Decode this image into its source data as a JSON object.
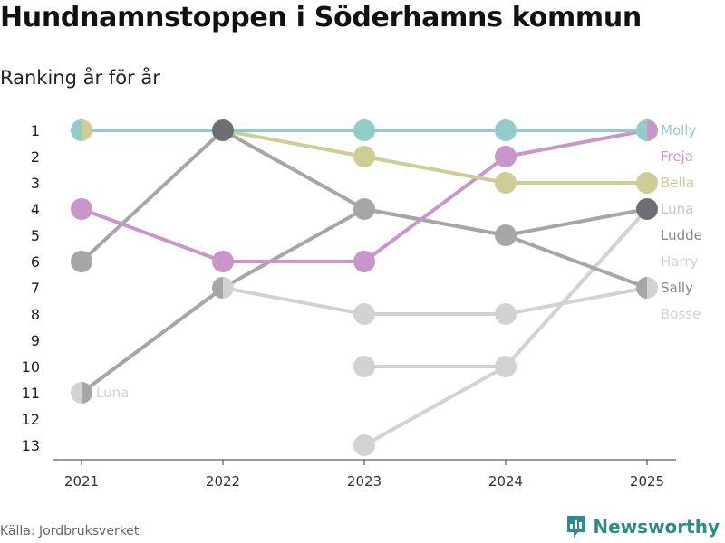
{
  "header": {
    "title": "Hundnamnstoppen i Söderhamns kommun",
    "subtitle": "Ranking år för år"
  },
  "footer": {
    "source": "Källa: Jordbruksverket",
    "brand": "Newsworthy",
    "brand_icon": "bar-chart-icon",
    "brand_color": "#2f8a8a"
  },
  "chart_data": {
    "type": "line",
    "title": "Hundnamnstoppen i Söderhamns kommun",
    "subtitle": "Ranking år för år",
    "xlabel": "",
    "ylabel": "",
    "x": [
      "2021",
      "2022",
      "2023",
      "2024",
      "2025"
    ],
    "y_ticks": [
      1,
      2,
      3,
      4,
      5,
      6,
      7,
      8,
      9,
      10,
      11,
      12,
      13
    ],
    "ylim": [
      1,
      13
    ],
    "y_reversed": true,
    "series": [
      {
        "name": "Luna (2021)",
        "label": "Luna",
        "label_at": 0,
        "color": "#d2d2d2",
        "ranks": [
          11,
          7,
          null,
          null,
          null
        ]
      },
      {
        "name": "Bosse",
        "label": "Bosse",
        "color": "#d2d2d2",
        "ranks": [
          null,
          7,
          8,
          8,
          7
        ]
      },
      {
        "name": "Harry",
        "label": "Harry",
        "color": "#d2d2d2",
        "ranks": [
          null,
          null,
          10,
          10,
          4
        ]
      },
      {
        "name": "Ludde",
        "label": "Ludde",
        "color": "#d2d2d2",
        "ranks": [
          null,
          null,
          13,
          10,
          4
        ]
      },
      {
        "name": "Sally",
        "label": "Sally",
        "color": "#a6a6a6",
        "ranks": [
          6,
          1,
          4,
          5,
          7
        ]
      },
      {
        "name": "Luna",
        "label": "Luna",
        "color": "#a6a6a6",
        "ranks": [
          11,
          7,
          4,
          5,
          4
        ]
      },
      {
        "name": "Freja",
        "label": "Freja",
        "color": "#c996cc",
        "ranks": [
          4,
          6,
          6,
          2,
          1
        ]
      },
      {
        "name": "Bella",
        "label": "Bella",
        "color": "#cdcd95",
        "ranks": [
          1,
          1,
          2,
          3,
          3
        ]
      },
      {
        "name": "Molly",
        "label": "Molly",
        "color": "#93cbcb",
        "ranks": [
          1,
          1,
          1,
          1,
          1
        ]
      }
    ],
    "end_labels": [
      {
        "text": "Molly",
        "rank": 1,
        "color": "#93cbcb"
      },
      {
        "text": "Freja",
        "rank": 2,
        "color": "#c996cc"
      },
      {
        "text": "Bella",
        "rank": 3,
        "color": "#cdcd95"
      },
      {
        "text": "Luna",
        "rank": 4,
        "color": "#c6c6c6"
      },
      {
        "text": "Ludde",
        "rank": 5,
        "color": "#888888"
      },
      {
        "text": "Harry",
        "rank": 6,
        "color": "#d2d2d2"
      },
      {
        "text": "Sally",
        "rank": 7,
        "color": "#888888"
      },
      {
        "text": "Bosse",
        "rank": 8,
        "color": "#d2d2d2"
      }
    ],
    "markers": [
      {
        "year": 0,
        "rank": 1,
        "colors": [
          "#93cbcb",
          "#cdcd95"
        ]
      },
      {
        "year": 0,
        "rank": 4,
        "colors": [
          "#c996cc"
        ]
      },
      {
        "year": 0,
        "rank": 6,
        "colors": [
          "#a6a6a6"
        ]
      },
      {
        "year": 0,
        "rank": 11,
        "colors": [
          "#d2d2d2",
          "#a6a6a6"
        ]
      },
      {
        "year": 1,
        "rank": 1,
        "colors": [
          "#6e6e74"
        ]
      },
      {
        "year": 1,
        "rank": 6,
        "colors": [
          "#c996cc"
        ]
      },
      {
        "year": 1,
        "rank": 7,
        "colors": [
          "#a6a6a6",
          "#d2d2d2"
        ]
      },
      {
        "year": 2,
        "rank": 1,
        "colors": [
          "#93cbcb"
        ]
      },
      {
        "year": 2,
        "rank": 2,
        "colors": [
          "#cdcd95"
        ]
      },
      {
        "year": 2,
        "rank": 4,
        "colors": [
          "#a6a6a6"
        ]
      },
      {
        "year": 2,
        "rank": 6,
        "colors": [
          "#c996cc"
        ]
      },
      {
        "year": 2,
        "rank": 8,
        "colors": [
          "#d2d2d2"
        ]
      },
      {
        "year": 2,
        "rank": 10,
        "colors": [
          "#d2d2d2"
        ]
      },
      {
        "year": 2,
        "rank": 13,
        "colors": [
          "#d2d2d2"
        ]
      },
      {
        "year": 3,
        "rank": 1,
        "colors": [
          "#93cbcb"
        ]
      },
      {
        "year": 3,
        "rank": 2,
        "colors": [
          "#c996cc"
        ]
      },
      {
        "year": 3,
        "rank": 3,
        "colors": [
          "#cdcd95"
        ]
      },
      {
        "year": 3,
        "rank": 5,
        "colors": [
          "#a6a6a6"
        ]
      },
      {
        "year": 3,
        "rank": 8,
        "colors": [
          "#d2d2d2"
        ]
      },
      {
        "year": 3,
        "rank": 10,
        "colors": [
          "#d2d2d2"
        ]
      },
      {
        "year": 4,
        "rank": 1,
        "colors": [
          "#93cbcb",
          "#c996cc"
        ]
      },
      {
        "year": 4,
        "rank": 3,
        "colors": [
          "#cdcd95"
        ]
      },
      {
        "year": 4,
        "rank": 4,
        "colors": [
          "#6e6e74"
        ]
      },
      {
        "year": 4,
        "rank": 7,
        "colors": [
          "#a6a6a6",
          "#d2d2d2"
        ]
      }
    ]
  }
}
